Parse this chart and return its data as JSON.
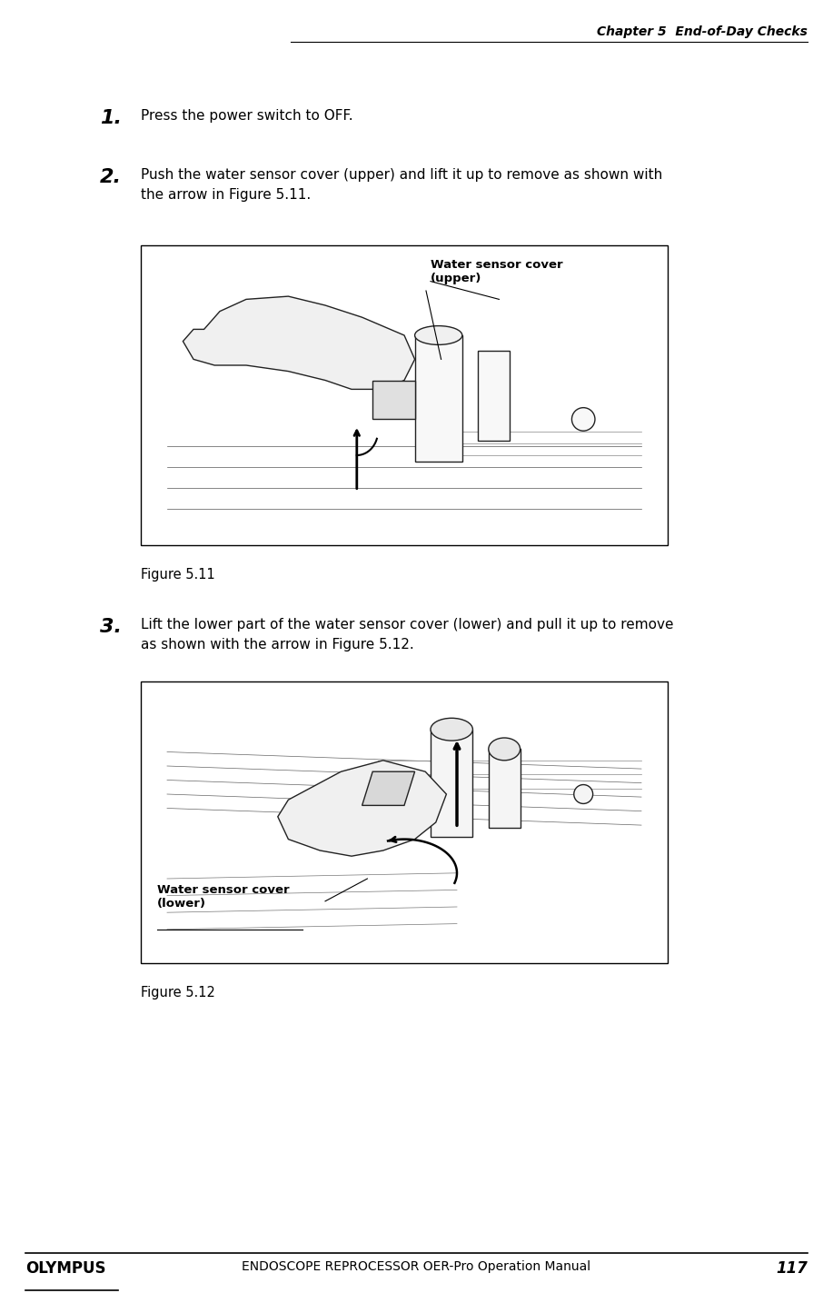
{
  "page_width": 9.17,
  "page_height": 14.34,
  "dpi": 100,
  "bg_color": "#ffffff",
  "header_text": "Chapter 5  End-of-Day Checks",
  "header_font_size": 10,
  "footer_logo_text": "OLYMPUS",
  "footer_center_text": "ENDOSCOPE REPROCESSOR OER-Pro Operation Manual",
  "footer_page_num": "117",
  "footer_font_size": 10,
  "step1_num": "1.",
  "step1_text": "Press the power switch to OFF.",
  "step2_num": "2.",
  "step2_text_line1": "Push the water sensor cover (upper) and lift it up to remove as shown with",
  "step2_text_line2": "the arrow in Figure 5.11.",
  "fig1_label": "Figure 5.11",
  "fig1_annotation_line1": "Water sensor cover",
  "fig1_annotation_line2": "(upper)",
  "step3_num": "3.",
  "step3_text_line1": "Lift the lower part of the water sensor cover (lower) and pull it up to remove",
  "step3_text_line2": "as shown with the arrow in Figure 5.12.",
  "fig2_label": "Figure 5.12",
  "fig2_annotation_line1": "Water sensor cover",
  "fig2_annotation_line2": "(lower)",
  "text_font_size": 11,
  "num_font_size": 16,
  "label_font_size": 10.5,
  "ann_font_size": 9.5
}
